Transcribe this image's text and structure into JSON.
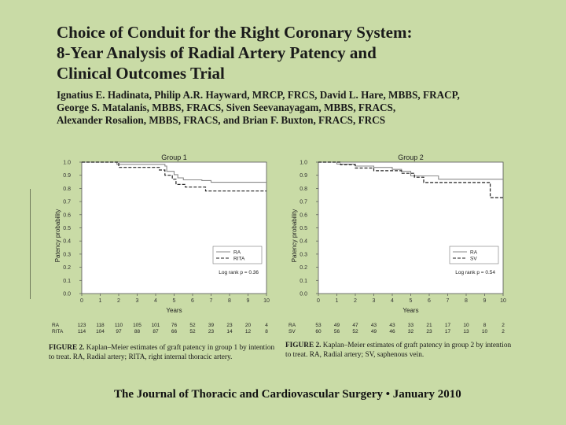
{
  "slide": {
    "title_lines": [
      "Choice of Conduit for the Right Coronary System:",
      "8-Year Analysis of Radial Artery Patency and",
      "Clinical Outcomes Trial"
    ],
    "author_lines": [
      "Ignatius E. Hadinata, Philip A.R. Hayward, MRCP, FRCS, David L. Hare, MBBS, FRACP,",
      "George S. Matalanis, MBBS, FRACS, Siven Seevanayagam, MBBS, FRACS,",
      "Alexander Rosalion, MBBS, FRACS, and Brian F. Buxton, FRACS, FRCS"
    ],
    "footer": "The Journal of Thoracic and Cardiovascular Surgery • January 2010"
  },
  "figures": [
    {
      "caption_label": "FIGURE 2.",
      "caption_text": " Kaplan–Meier estimates of graft patency in group 1 by intention to treat. RA, Radial artery; RITA, right internal thoracic artery."
    },
    {
      "caption_label": "FIGURE 2.",
      "caption_text": " Kaplan–Meier estimates of graft patency in group 2 by intention to treat. RA, Radial artery; SV, saphenous vein."
    }
  ],
  "chart_data": [
    {
      "type": "line",
      "step": true,
      "title": "Group 1",
      "xlabel": "Years",
      "ylabel": "Patency probability",
      "xlim": [
        0,
        10
      ],
      "ylim": [
        0,
        1
      ],
      "xticks": [
        "0",
        "1",
        "2",
        "3",
        "4",
        "5",
        "6",
        "7",
        "8",
        "9",
        "10"
      ],
      "yticks": [
        "0.0",
        "0.1",
        "0.2",
        "0.3",
        "0.4",
        "0.5",
        "0.6",
        "0.7",
        "0.8",
        "0.9",
        "1.0"
      ],
      "annotation": "Log rank p = 0.36",
      "legend_position": "lower-right",
      "series": [
        {
          "name": "RA",
          "style": "solid",
          "points": [
            [
              0,
              1.0
            ],
            [
              1.9,
              1.0
            ],
            [
              1.9,
              0.983
            ],
            [
              4.5,
              0.983
            ],
            [
              4.5,
              0.97
            ],
            [
              4.6,
              0.97
            ],
            [
              4.6,
              0.93
            ],
            [
              5.0,
              0.93
            ],
            [
              5.0,
              0.905
            ],
            [
              5.2,
              0.905
            ],
            [
              5.2,
              0.88
            ],
            [
              5.5,
              0.88
            ],
            [
              5.5,
              0.865
            ],
            [
              6.5,
              0.865
            ],
            [
              6.5,
              0.86
            ],
            [
              7.0,
              0.86
            ],
            [
              7.0,
              0.847
            ],
            [
              10.0,
              0.847
            ]
          ]
        },
        {
          "name": "RITA",
          "style": "dashed",
          "points": [
            [
              0,
              1.0
            ],
            [
              2.0,
              1.0
            ],
            [
              2.0,
              0.96
            ],
            [
              4.2,
              0.96
            ],
            [
              4.2,
              0.94
            ],
            [
              4.5,
              0.94
            ],
            [
              4.5,
              0.9
            ],
            [
              4.9,
              0.9
            ],
            [
              4.9,
              0.87
            ],
            [
              5.1,
              0.87
            ],
            [
              5.1,
              0.83
            ],
            [
              5.6,
              0.83
            ],
            [
              5.6,
              0.81
            ],
            [
              6.7,
              0.81
            ],
            [
              6.7,
              0.78
            ],
            [
              10.0,
              0.78
            ]
          ]
        }
      ],
      "risk_table": {
        "rows": [
          {
            "name": "RA",
            "values": [
              "123",
              "118",
              "110",
              "105",
              "101",
              "76",
              "52",
              "39",
              "23",
              "20",
              "4"
            ]
          },
          {
            "name": "RITA",
            "values": [
              "114",
              "104",
              "97",
              "88",
              "87",
              "66",
              "52",
              "23",
              "14",
              "12",
              "8"
            ]
          }
        ]
      }
    },
    {
      "type": "line",
      "step": true,
      "title": "Group 2",
      "xlabel": "Years",
      "ylabel": "Patency probability",
      "xlim": [
        0,
        10
      ],
      "ylim": [
        0,
        1
      ],
      "xticks": [
        "0",
        "1",
        "2",
        "3",
        "4",
        "5",
        "6",
        "7",
        "8",
        "9",
        "10"
      ],
      "yticks": [
        "0.0",
        "0.1",
        "0.2",
        "0.3",
        "0.4",
        "0.5",
        "0.6",
        "0.7",
        "0.8",
        "0.9",
        "1.0"
      ],
      "annotation": "Log rank p = 0.54",
      "legend_position": "lower-right",
      "series": [
        {
          "name": "RA",
          "style": "solid",
          "points": [
            [
              0,
              1.0
            ],
            [
              1.0,
              1.0
            ],
            [
              1.0,
              0.985
            ],
            [
              2.0,
              0.985
            ],
            [
              2.0,
              0.97
            ],
            [
              3.0,
              0.97
            ],
            [
              3.0,
              0.96
            ],
            [
              4.0,
              0.96
            ],
            [
              4.0,
              0.945
            ],
            [
              4.5,
              0.945
            ],
            [
              4.5,
              0.93
            ],
            [
              5.0,
              0.93
            ],
            [
              5.0,
              0.895
            ],
            [
              6.5,
              0.895
            ],
            [
              6.5,
              0.87
            ],
            [
              10.0,
              0.87
            ]
          ]
        },
        {
          "name": "SV",
          "style": "dashed",
          "points": [
            [
              0,
              1.0
            ],
            [
              1.2,
              1.0
            ],
            [
              1.2,
              0.98
            ],
            [
              2.0,
              0.98
            ],
            [
              2.0,
              0.955
            ],
            [
              3.0,
              0.955
            ],
            [
              3.0,
              0.935
            ],
            [
              4.5,
              0.935
            ],
            [
              4.5,
              0.915
            ],
            [
              5.2,
              0.915
            ],
            [
              5.2,
              0.885
            ],
            [
              5.7,
              0.885
            ],
            [
              5.7,
              0.845
            ],
            [
              9.3,
              0.845
            ],
            [
              9.3,
              0.73
            ],
            [
              10.0,
              0.73
            ]
          ]
        }
      ],
      "risk_table": {
        "rows": [
          {
            "name": "RA",
            "values": [
              "53",
              "49",
              "47",
              "43",
              "43",
              "33",
              "21",
              "17",
              "10",
              "8",
              "2"
            ]
          },
          {
            "name": "SV",
            "values": [
              "60",
              "56",
              "52",
              "49",
              "46",
              "32",
              "23",
              "17",
              "13",
              "10",
              "2"
            ]
          }
        ]
      }
    }
  ]
}
